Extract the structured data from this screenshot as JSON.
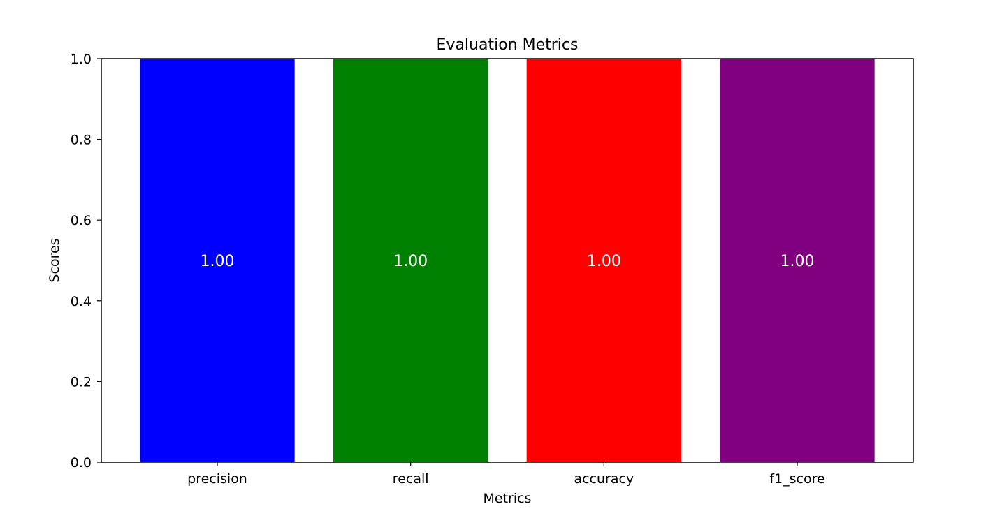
{
  "chart_data": {
    "type": "bar",
    "title": "Evaluation Metrics",
    "xlabel": "Metrics",
    "ylabel": "Scores",
    "categories": [
      "precision",
      "recall",
      "accuracy",
      "f1_score"
    ],
    "values": [
      1.0,
      1.0,
      1.0,
      1.0
    ],
    "data_labels": [
      "1.00",
      "1.00",
      "1.00",
      "1.00"
    ],
    "colors": [
      "#0000ff",
      "#008000",
      "#ff0000",
      "#800080"
    ],
    "ylim": [
      0,
      1.0
    ],
    "yticks": [
      0.0,
      0.2,
      0.4,
      0.6,
      0.8,
      1.0
    ],
    "ytick_labels": [
      "0.0",
      "0.2",
      "0.4",
      "0.6",
      "0.8",
      "1.0"
    ],
    "grid": false,
    "legend": "none",
    "data_label_color": "#ffffff"
  }
}
